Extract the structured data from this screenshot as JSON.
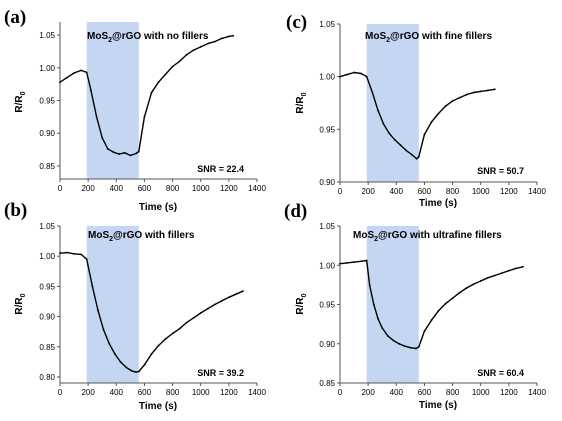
{
  "chart_data": [
    {
      "type": "line",
      "panel": "(a)",
      "title": "MoS2@rGO with no fillers",
      "title_main": "MoS",
      "title_sub": "2",
      "title_rest": "@rGO with no fillers",
      "annotation": "SNR = 22.4",
      "xlabel": "Time (s)",
      "ylabel_main": "R/R",
      "ylabel_sub": "0",
      "xlim": [
        0,
        1400
      ],
      "ylim": [
        0.83,
        1.07
      ],
      "xticks": [
        "0",
        "200",
        "400",
        "600",
        "800",
        "1000",
        "1200",
        "1400"
      ],
      "yticks": [
        "0.85",
        "0.90",
        "0.95",
        "1.00",
        "1.05"
      ],
      "highlight_x": [
        190,
        560
      ],
      "highlight_color": "#c5d6f2",
      "x": [
        0,
        50,
        100,
        150,
        190,
        220,
        260,
        300,
        340,
        380,
        420,
        460,
        500,
        540,
        560,
        600,
        650,
        700,
        750,
        800,
        850,
        900,
        950,
        1000,
        1050,
        1100,
        1150,
        1200,
        1230
      ],
      "y": [
        0.978,
        0.985,
        0.992,
        0.996,
        0.993,
        0.965,
        0.925,
        0.893,
        0.876,
        0.871,
        0.868,
        0.87,
        0.866,
        0.869,
        0.872,
        0.925,
        0.962,
        0.978,
        0.99,
        1.002,
        1.01,
        1.02,
        1.027,
        1.032,
        1.037,
        1.04,
        1.045,
        1.048,
        1.049
      ]
    },
    {
      "type": "line",
      "panel": "(c)",
      "title": "MoS2@rGO with fine fillers",
      "title_main": "MoS",
      "title_sub": "2",
      "title_rest": "@rGO with fine fillers",
      "annotation": "SNR = 50.7",
      "xlabel": "Time (s)",
      "ylabel_main": "R/R",
      "ylabel_sub": "0",
      "xlim": [
        0,
        1400
      ],
      "ylim": [
        0.9,
        1.05
      ],
      "xticks": [
        "0",
        "200",
        "400",
        "600",
        "800",
        "1000",
        "1200",
        "1400"
      ],
      "yticks": [
        "0.90",
        "0.95",
        "1.00",
        "1.05"
      ],
      "highlight_x": [
        190,
        560
      ],
      "highlight_color": "#c5d6f2",
      "x": [
        0,
        50,
        100,
        150,
        190,
        230,
        270,
        310,
        350,
        390,
        430,
        470,
        510,
        545,
        560,
        600,
        650,
        700,
        750,
        800,
        850,
        900,
        950,
        1000,
        1050,
        1100
      ],
      "y": [
        1.0,
        1.002,
        1.004,
        1.003,
        1.0,
        0.985,
        0.968,
        0.955,
        0.946,
        0.94,
        0.935,
        0.93,
        0.926,
        0.922,
        0.924,
        0.945,
        0.957,
        0.965,
        0.972,
        0.977,
        0.98,
        0.983,
        0.985,
        0.986,
        0.987,
        0.988
      ]
    },
    {
      "type": "line",
      "panel": "(b)",
      "title": "MoS2@rGO with fillers",
      "title_main": "MoS",
      "title_sub": "2",
      "title_rest": "@rGO with fillers",
      "annotation": "SNR = 39.2",
      "xlabel": "Time (s)",
      "ylabel_main": "R/R",
      "ylabel_sub": "0",
      "xlim": [
        0,
        1400
      ],
      "ylim": [
        0.79,
        1.05
      ],
      "xticks": [
        "0",
        "200",
        "400",
        "600",
        "800",
        "1000",
        "1200",
        "1400"
      ],
      "yticks": [
        "0.80",
        "0.85",
        "0.90",
        "0.95",
        "1.00",
        "1.05"
      ],
      "highlight_x": [
        190,
        560
      ],
      "highlight_color": "#c5d6f2",
      "x": [
        0,
        50,
        100,
        150,
        190,
        230,
        270,
        310,
        350,
        390,
        430,
        470,
        510,
        540,
        560,
        600,
        650,
        700,
        750,
        800,
        850,
        900,
        950,
        1000,
        1050,
        1100,
        1150,
        1200,
        1250,
        1300
      ],
      "y": [
        1.005,
        1.006,
        1.004,
        1.003,
        0.995,
        0.95,
        0.91,
        0.878,
        0.855,
        0.838,
        0.825,
        0.816,
        0.81,
        0.808,
        0.809,
        0.82,
        0.838,
        0.852,
        0.863,
        0.872,
        0.88,
        0.89,
        0.898,
        0.906,
        0.913,
        0.92,
        0.926,
        0.932,
        0.937,
        0.942
      ]
    },
    {
      "type": "line",
      "panel": "(d)",
      "title": "MoS2@rGO with ultrafine fillers",
      "title_main": "MoS",
      "title_sub": "2",
      "title_rest": "@rGO with ultrafine fillers",
      "annotation": "SNR = 60.4",
      "xlabel": "Time (s)",
      "ylabel_main": "R/R",
      "ylabel_sub": "0",
      "xlim": [
        0,
        1400
      ],
      "ylim": [
        0.85,
        1.05
      ],
      "xticks": [
        "0",
        "200",
        "400",
        "600",
        "800",
        "1000",
        "1200",
        "1400"
      ],
      "yticks": [
        "0.85",
        "0.90",
        "0.95",
        "1.00",
        "1.05"
      ],
      "highlight_x": [
        190,
        560
      ],
      "highlight_color": "#c5d6f2",
      "x": [
        0,
        50,
        100,
        150,
        190,
        210,
        240,
        270,
        300,
        340,
        380,
        420,
        460,
        500,
        540,
        560,
        600,
        650,
        700,
        750,
        800,
        850,
        900,
        950,
        1000,
        1050,
        1100,
        1150,
        1200,
        1250,
        1300
      ],
      "y": [
        1.002,
        1.003,
        1.004,
        1.005,
        1.006,
        0.975,
        0.95,
        0.932,
        0.92,
        0.91,
        0.904,
        0.9,
        0.897,
        0.895,
        0.894,
        0.896,
        0.916,
        0.93,
        0.942,
        0.951,
        0.958,
        0.965,
        0.971,
        0.976,
        0.98,
        0.984,
        0.987,
        0.99,
        0.993,
        0.996,
        0.998
      ]
    }
  ]
}
